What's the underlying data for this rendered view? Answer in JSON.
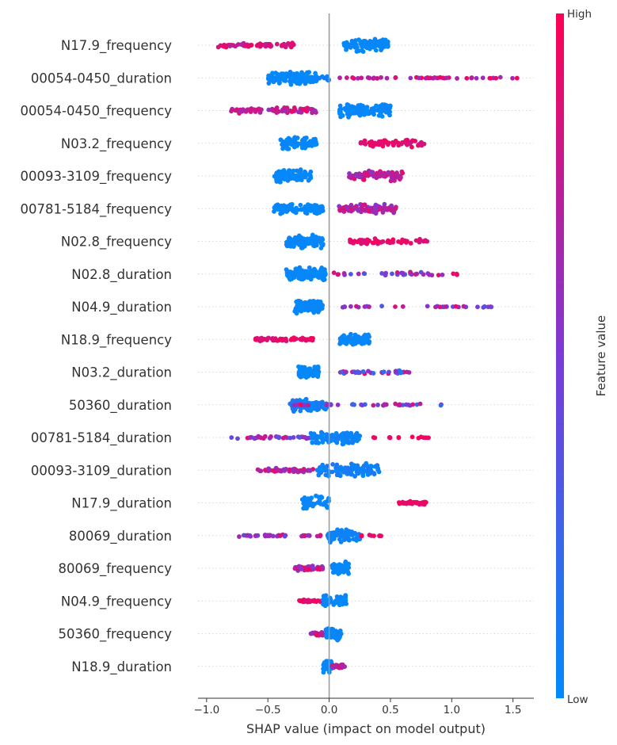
{
  "chart_data": {
    "type": "scatter",
    "subtype": "shap-beeswarm",
    "title": "",
    "xlabel": "SHAP value (impact on model output)",
    "ylabel": "",
    "xlim": [
      -1.07,
      1.67
    ],
    "xticks": [
      -1.0,
      -0.5,
      0.0,
      0.5,
      1.0,
      1.5
    ],
    "xtick_labels": [
      "−1.0",
      "−0.5",
      "0.0",
      "0.5",
      "1.0",
      "1.5"
    ],
    "grid": false,
    "zero_line": true,
    "colorbar": {
      "title": "Feature value",
      "high_label": "High",
      "low_label": "Low",
      "low_color": "#008bfb",
      "mid_color": "#7c3ad6",
      "high_color": "#ff0052"
    },
    "features": [
      {
        "name": "N17.9_frequency",
        "points": [
          {
            "range": [
              -0.92,
              -0.27
            ],
            "n": 60,
            "fl": 0.7,
            "fh": 0.95,
            "spread": 0.35
          },
          {
            "range": [
              0.12,
              0.48
            ],
            "n": 95,
            "fl": 0.0,
            "fh": 0.05,
            "spread": 1.0
          }
        ]
      },
      {
        "name": "00054-0450_duration",
        "points": [
          {
            "range": [
              -0.5,
              -0.1
            ],
            "n": 140,
            "fl": 0.0,
            "fh": 0.05,
            "spread": 1.0
          },
          {
            "range": [
              -0.1,
              0.0
            ],
            "n": 12,
            "fl": 0.0,
            "fh": 0.1,
            "spread": 0.4
          },
          {
            "range": [
              0.08,
              1.55
            ],
            "n": 45,
            "fl": 0.55,
            "fh": 0.98,
            "spread": 0.1
          }
        ]
      },
      {
        "name": "00054-0450_frequency",
        "points": [
          {
            "range": [
              -0.82,
              -0.1
            ],
            "n": 80,
            "fl": 0.6,
            "fh": 0.95,
            "spread": 0.45
          },
          {
            "range": [
              0.08,
              0.5
            ],
            "n": 110,
            "fl": 0.0,
            "fh": 0.05,
            "spread": 1.0
          }
        ]
      },
      {
        "name": "N03.2_frequency",
        "points": [
          {
            "range": [
              -0.4,
              -0.1
            ],
            "n": 75,
            "fl": 0.0,
            "fh": 0.05,
            "spread": 1.0
          },
          {
            "range": [
              0.25,
              0.8
            ],
            "n": 60,
            "fl": 0.8,
            "fh": 0.98,
            "spread": 0.55
          }
        ]
      },
      {
        "name": "00093-3109_frequency",
        "points": [
          {
            "range": [
              -0.45,
              -0.15
            ],
            "n": 90,
            "fl": 0.0,
            "fh": 0.05,
            "spread": 1.0
          },
          {
            "range": [
              0.15,
              0.6
            ],
            "n": 80,
            "fl": 0.55,
            "fh": 0.95,
            "spread": 0.75
          }
        ]
      },
      {
        "name": "00781-5184_frequency",
        "points": [
          {
            "range": [
              -0.45,
              -0.05
            ],
            "n": 90,
            "fl": 0.0,
            "fh": 0.05,
            "spread": 0.8
          },
          {
            "range": [
              0.08,
              0.55
            ],
            "n": 90,
            "fl": 0.5,
            "fh": 0.9,
            "spread": 0.7
          }
        ]
      },
      {
        "name": "N02.8_frequency",
        "points": [
          {
            "range": [
              -0.35,
              -0.05
            ],
            "n": 100,
            "fl": 0.0,
            "fh": 0.05,
            "spread": 1.0
          },
          {
            "range": [
              0.15,
              0.8
            ],
            "n": 60,
            "fl": 0.8,
            "fh": 0.98,
            "spread": 0.45
          }
        ]
      },
      {
        "name": "N02.8_duration",
        "points": [
          {
            "range": [
              -0.35,
              -0.03
            ],
            "n": 120,
            "fl": 0.0,
            "fh": 0.05,
            "spread": 1.0
          },
          {
            "range": [
              0.03,
              1.05
            ],
            "n": 35,
            "fl": 0.3,
            "fh": 0.95,
            "spread": 0.3
          }
        ]
      },
      {
        "name": "N04.9_duration",
        "points": [
          {
            "range": [
              -0.28,
              -0.05
            ],
            "n": 95,
            "fl": 0.0,
            "fh": 0.05,
            "spread": 1.0
          },
          {
            "range": [
              0.0,
              1.35
            ],
            "n": 30,
            "fl": 0.3,
            "fh": 0.98,
            "spread": 0.12
          }
        ]
      },
      {
        "name": "N18.9_frequency",
        "points": [
          {
            "range": [
              -0.6,
              -0.13
            ],
            "n": 60,
            "fl": 0.8,
            "fh": 0.98,
            "spread": 0.25
          },
          {
            "range": [
              0.08,
              0.33
            ],
            "n": 70,
            "fl": 0.0,
            "fh": 0.05,
            "spread": 0.9
          }
        ]
      },
      {
        "name": "N03.2_duration",
        "points": [
          {
            "range": [
              -0.25,
              -0.08
            ],
            "n": 85,
            "fl": 0.0,
            "fh": 0.05,
            "spread": 1.0
          },
          {
            "range": [
              0.03,
              0.7
            ],
            "n": 40,
            "fl": 0.1,
            "fh": 0.95,
            "spread": 0.25
          }
        ]
      },
      {
        "name": "50360_duration",
        "points": [
          {
            "range": [
              -0.32,
              -0.02
            ],
            "n": 90,
            "fl": 0.0,
            "fh": 0.15,
            "spread": 1.0
          },
          {
            "range": [
              -0.45,
              0.93
            ],
            "n": 40,
            "fl": 0.15,
            "fh": 0.95,
            "spread": 0.18
          }
        ]
      },
      {
        "name": "00781-5184_duration",
        "points": [
          {
            "range": [
              -0.85,
              -0.1
            ],
            "n": 40,
            "fl": 0.3,
            "fh": 0.9,
            "spread": 0.2
          },
          {
            "range": [
              -0.15,
              0.25
            ],
            "n": 110,
            "fl": 0.0,
            "fh": 0.1,
            "spread": 1.0
          },
          {
            "range": [
              0.3,
              0.93
            ],
            "n": 15,
            "fl": 0.9,
            "fh": 0.98,
            "spread": 0.1
          }
        ]
      },
      {
        "name": "00093-3109_duration",
        "points": [
          {
            "range": [
              -0.62,
              -0.05
            ],
            "n": 60,
            "fl": 0.5,
            "fh": 0.95,
            "spread": 0.3
          },
          {
            "range": [
              -0.1,
              0.42
            ],
            "n": 110,
            "fl": 0.0,
            "fh": 0.15,
            "spread": 1.0
          }
        ]
      },
      {
        "name": "N17.9_duration",
        "points": [
          {
            "range": [
              -0.22,
              0.0
            ],
            "n": 45,
            "fl": 0.0,
            "fh": 0.05,
            "spread": 1.0
          },
          {
            "range": [
              0.53,
              0.8
            ],
            "n": 35,
            "fl": 0.85,
            "fh": 0.98,
            "spread": 0.25
          }
        ]
      },
      {
        "name": "80069_duration",
        "points": [
          {
            "range": [
              -0.76,
              -0.35
            ],
            "n": 30,
            "fl": 0.4,
            "fh": 0.9,
            "spread": 0.15
          },
          {
            "range": [
              -0.25,
              -0.05
            ],
            "n": 12,
            "fl": 0.4,
            "fh": 0.95,
            "spread": 0.15
          },
          {
            "range": [
              -0.02,
              0.25
            ],
            "n": 70,
            "fl": 0.0,
            "fh": 0.1,
            "spread": 1.0
          },
          {
            "range": [
              0.25,
              0.48
            ],
            "n": 8,
            "fl": 0.85,
            "fh": 0.98,
            "spread": 0.1
          }
        ]
      },
      {
        "name": "80069_frequency",
        "points": [
          {
            "range": [
              -0.28,
              -0.05
            ],
            "n": 50,
            "fl": 0.5,
            "fh": 0.95,
            "spread": 0.35
          },
          {
            "range": [
              0.02,
              0.16
            ],
            "n": 55,
            "fl": 0.0,
            "fh": 0.05,
            "spread": 1.0
          }
        ]
      },
      {
        "name": "N04.9_frequency",
        "points": [
          {
            "range": [
              -0.25,
              -0.03
            ],
            "n": 35,
            "fl": 0.85,
            "fh": 0.98,
            "spread": 0.2
          },
          {
            "range": [
              -0.05,
              0.14
            ],
            "n": 55,
            "fl": 0.0,
            "fh": 0.05,
            "spread": 1.0
          }
        ]
      },
      {
        "name": "50360_frequency",
        "points": [
          {
            "range": [
              -0.15,
              0.0
            ],
            "n": 40,
            "fl": 0.5,
            "fh": 0.95,
            "spread": 0.35
          },
          {
            "range": [
              -0.03,
              0.1
            ],
            "n": 50,
            "fl": 0.0,
            "fh": 0.05,
            "spread": 1.0
          }
        ]
      },
      {
        "name": "N18.9_duration",
        "points": [
          {
            "range": [
              -0.05,
              0.02
            ],
            "n": 45,
            "fl": 0.0,
            "fh": 0.05,
            "spread": 1.0
          },
          {
            "range": [
              0.02,
              0.13
            ],
            "n": 25,
            "fl": 0.6,
            "fh": 0.95,
            "spread": 0.35
          }
        ]
      }
    ]
  }
}
